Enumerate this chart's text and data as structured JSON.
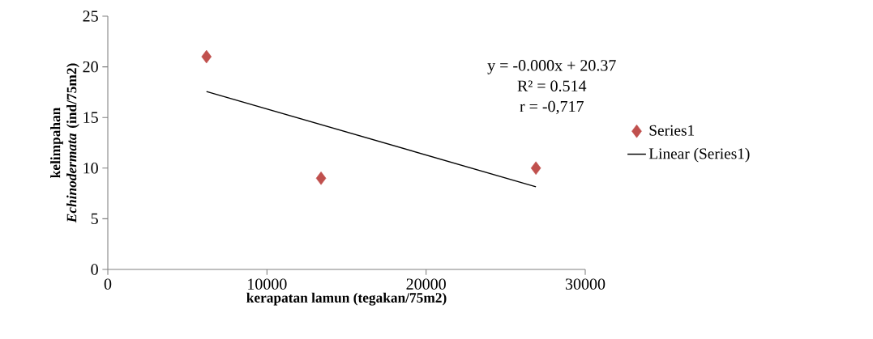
{
  "chart_data": {
    "type": "scatter",
    "xlabel": "kerapatan lamun (tegakan/75m2)",
    "ylabel": "kelimpahan *Echinodermata* (ind/75m2)",
    "xlim": [
      0,
      30000
    ],
    "xticks": [
      0,
      10000,
      20000,
      30000
    ],
    "ylim": [
      0,
      25
    ],
    "yticks": [
      0,
      5,
      10,
      15,
      20,
      25
    ],
    "grid": false,
    "legend": "right",
    "marker": "diamond",
    "annotations": [
      "y = -0.000x + 20.37",
      "R² = 0.514",
      "r = -0,717"
    ],
    "series": [
      {
        "name": "Series1",
        "color": "#c0504d",
        "x": [
          6200,
          13400,
          26900
        ],
        "values": [
          21,
          9,
          10
        ]
      },
      {
        "name": "Linear (Series1)",
        "type": "line",
        "color": "#000000",
        "marker": "none",
        "x": [
          6200,
          26900
        ],
        "values": [
          17.56,
          8.16
        ]
      }
    ]
  }
}
